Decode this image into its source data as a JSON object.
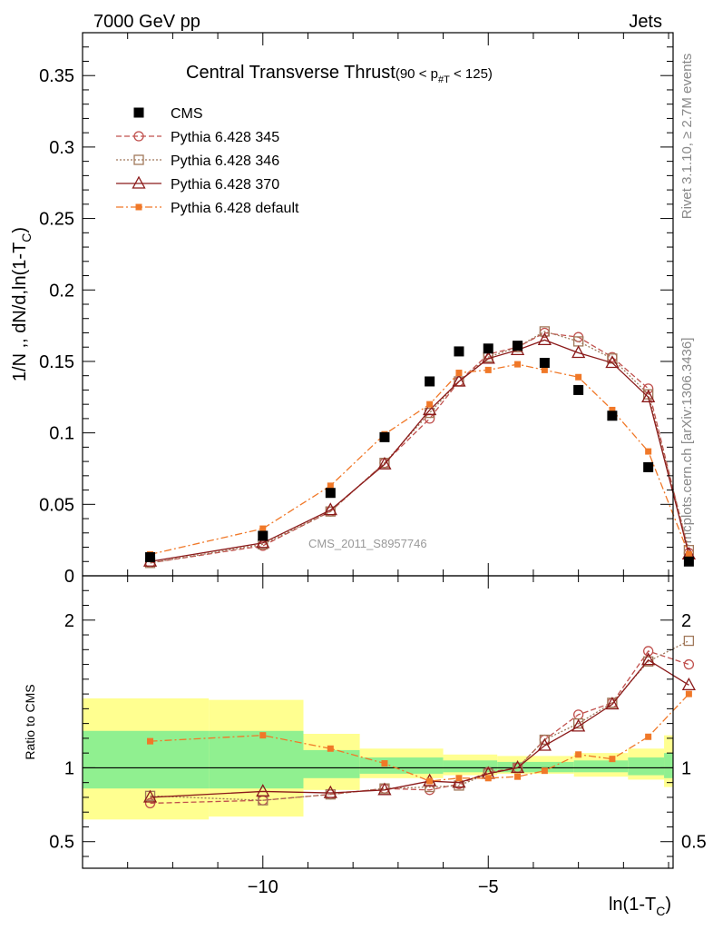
{
  "header": {
    "left": "7000 GeV pp",
    "right": "Jets"
  },
  "side": {
    "rivet": "Rivet 3.1.10, ≥ 2.7M events",
    "mcplots": "mcplots.cern.ch [arXiv:1306.3436]"
  },
  "colors": {
    "cms": "#000000",
    "p345": "#c0504d",
    "p346": "#a0785a",
    "p370": "#8b1a1a",
    "pdef": "#f07828",
    "band_inner": "#90f090",
    "band_outer": "#ffff90"
  },
  "chart_data": {
    "type": "scatter",
    "title": "Central Transverse Thrust",
    "title_sub": "(90 < p",
    "title_sub_idx": "#T",
    "title_sub_end": " < 125)",
    "ylabel": "1/N ,, dN/d,ln(1-T",
    "ylabel_sub": "C",
    "ylabel_end": ")",
    "xlabel": "ln(1-T",
    "xlabel_sub": "C",
    "xlabel_end": ")",
    "ratio_ylabel": "Ratio to CMS",
    "watermark": "CMS_2011_S8957746",
    "xlim": [
      -14.0,
      -0.9
    ],
    "ylim": [
      0,
      0.38
    ],
    "ratio_ylim": [
      0.32,
      2.3
    ],
    "y_ticks": [
      {
        "v": 0,
        "label": "0"
      },
      {
        "v": 0.05,
        "label": "0.05"
      },
      {
        "v": 0.1,
        "label": "0.1"
      },
      {
        "v": 0.15,
        "label": "0.15"
      },
      {
        "v": 0.2,
        "label": "0.2"
      },
      {
        "v": 0.25,
        "label": "0.25"
      },
      {
        "v": 0.3,
        "label": "0.3"
      },
      {
        "v": 0.35,
        "label": "0.35"
      }
    ],
    "x_ticks": [
      {
        "v": -10,
        "label": "−10"
      },
      {
        "v": -5,
        "label": "−5"
      }
    ],
    "ratio_ticks": [
      {
        "v": 0.5,
        "label": "0.5"
      },
      {
        "v": 1,
        "label": "1"
      },
      {
        "v": 2,
        "label": "2"
      }
    ],
    "x": [
      -12.5,
      -10.0,
      -8.5,
      -7.3,
      -6.3,
      -5.65,
      -5.0,
      -4.35,
      -3.75,
      -3.0,
      -2.25,
      -1.45,
      -0.55
    ],
    "series": [
      {
        "name": "CMS",
        "key": "cms",
        "values": [
          0.013,
          0.028,
          0.058,
          0.097,
          0.136,
          0.157,
          0.159,
          0.161,
          0.149,
          0.13,
          0.112,
          0.076,
          0.01
        ]
      },
      {
        "name": "Pythia 6.428 345",
        "key": "p345",
        "values": [
          0.009,
          0.021,
          0.045,
          0.079,
          0.11,
          0.136,
          0.155,
          0.16,
          0.17,
          0.167,
          0.153,
          0.131,
          0.016
        ]
      },
      {
        "name": "Pythia 6.428 346",
        "key": "p346",
        "values": [
          0.009,
          0.022,
          0.045,
          0.079,
          0.114,
          0.136,
          0.153,
          0.16,
          0.171,
          0.164,
          0.152,
          0.127,
          0.018
        ]
      },
      {
        "name": "Pythia 6.428 370",
        "key": "p370",
        "values": [
          0.01,
          0.023,
          0.046,
          0.078,
          0.116,
          0.136,
          0.152,
          0.158,
          0.165,
          0.156,
          0.149,
          0.125,
          0.015
        ]
      },
      {
        "name": "Pythia 6.428 default",
        "key": "pdef",
        "values": [
          0.015,
          0.033,
          0.063,
          0.099,
          0.12,
          0.142,
          0.144,
          0.148,
          0.144,
          0.139,
          0.116,
          0.087,
          0.015
        ]
      }
    ],
    "ratios": {
      "p345": [
        0.76,
        0.78,
        0.82,
        0.86,
        0.85,
        0.89,
        0.97,
        1.0,
        1.19,
        1.36,
        1.44,
        1.79,
        1.7
      ],
      "p346": [
        0.81,
        0.78,
        0.82,
        0.86,
        0.87,
        0.88,
        0.96,
        1.0,
        1.19,
        1.3,
        1.44,
        1.72,
        1.86
      ],
      "p370": [
        0.8,
        0.84,
        0.83,
        0.85,
        0.91,
        0.9,
        0.96,
        1.0,
        1.15,
        1.28,
        1.43,
        1.73,
        1.56
      ],
      "pdef": [
        1.18,
        1.22,
        1.13,
        1.03,
        0.91,
        0.93,
        0.93,
        0.94,
        0.98,
        1.09,
        1.06,
        1.21,
        1.5
      ]
    },
    "bands": [
      {
        "x0": -14.0,
        "x1": -11.2,
        "inner": [
          0.86,
          1.25
        ],
        "outer": [
          0.65,
          1.47
        ]
      },
      {
        "x0": -11.2,
        "x1": -9.1,
        "inner": [
          0.86,
          1.25
        ],
        "outer": [
          0.67,
          1.46
        ]
      },
      {
        "x0": -9.1,
        "x1": -7.85,
        "inner": [
          0.93,
          1.12
        ],
        "outer": [
          0.85,
          1.23
        ]
      },
      {
        "x0": -7.85,
        "x1": -6.0,
        "inner": [
          0.96,
          1.07
        ],
        "outer": [
          0.93,
          1.13
        ]
      },
      {
        "x0": -6.0,
        "x1": -4.8,
        "inner": [
          0.97,
          1.05
        ],
        "outer": [
          0.95,
          1.09
        ]
      },
      {
        "x0": -4.8,
        "x1": -3.1,
        "inner": [
          0.97,
          1.04
        ],
        "outer": [
          0.96,
          1.08
        ]
      },
      {
        "x0": -3.1,
        "x1": -1.9,
        "inner": [
          0.97,
          1.05
        ],
        "outer": [
          0.94,
          1.1
        ]
      },
      {
        "x0": -1.9,
        "x1": -1.1,
        "inner": [
          0.95,
          1.07
        ],
        "outer": [
          0.92,
          1.13
        ]
      },
      {
        "x0": -1.1,
        "x1": -0.2,
        "inner": [
          0.93,
          1.1
        ],
        "outer": [
          0.87,
          1.22
        ]
      }
    ]
  }
}
